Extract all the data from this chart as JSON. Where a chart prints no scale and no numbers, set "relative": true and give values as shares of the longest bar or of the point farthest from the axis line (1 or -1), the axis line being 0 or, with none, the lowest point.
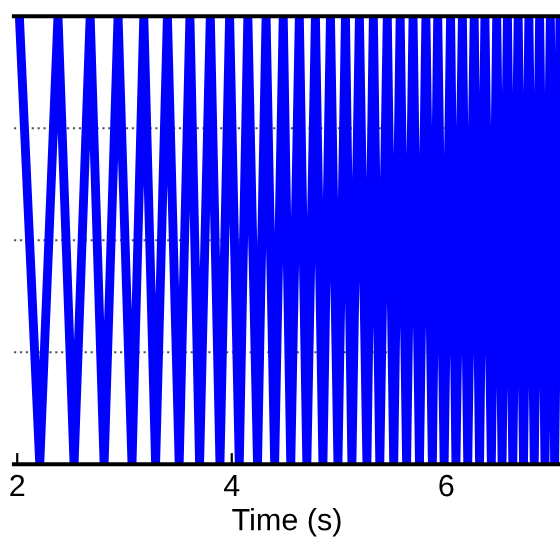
{
  "chart_data": {
    "type": "line",
    "xlabel": "Time (s)",
    "relative": true,
    "x": [
      2.02,
      2.21,
      2.38,
      2.53,
      2.68,
      2.81,
      2.94,
      3.07,
      3.18,
      3.29,
      3.4,
      3.51,
      3.61,
      3.7,
      3.8,
      3.89,
      3.98,
      4.07,
      4.15,
      4.24,
      4.32,
      4.4,
      4.48,
      4.55,
      4.63,
      4.7,
      4.78,
      4.85,
      4.92,
      4.99,
      5.06,
      5.12,
      5.19,
      5.26,
      5.32,
      5.38,
      5.45,
      5.51,
      5.57,
      5.63,
      5.69,
      5.75,
      5.81,
      5.87,
      5.92,
      5.98,
      6.04,
      6.09,
      6.15,
      6.2,
      6.26,
      6.31,
      6.36,
      6.42,
      6.47,
      6.52,
      6.57,
      6.62,
      6.67,
      6.72,
      6.77,
      6.82,
      6.87,
      6.92,
      6.97,
      7.01,
      7.06
    ],
    "series": [
      {
        "color": "#0000ff",
        "values": [
          1,
          0,
          1,
          0,
          1,
          0,
          1,
          0,
          1,
          0,
          1,
          0,
          1,
          0,
          1,
          0,
          1,
          0,
          1,
          0,
          1,
          0,
          1,
          0,
          1,
          0,
          1,
          0,
          1,
          0,
          1,
          0,
          1,
          0,
          1,
          0,
          1,
          0,
          1,
          0,
          1,
          0,
          1,
          0,
          1,
          0,
          1,
          0,
          1,
          0,
          1,
          0,
          1,
          0,
          1,
          0,
          1,
          0,
          1,
          0,
          1,
          0,
          1,
          0,
          1,
          0,
          1
        ]
      }
    ],
    "xlim": [
      1.97,
      7.06
    ],
    "xticks": [
      2,
      4,
      6
    ],
    "grid": "y",
    "line_style": "solid",
    "tick_labels": "x"
  }
}
